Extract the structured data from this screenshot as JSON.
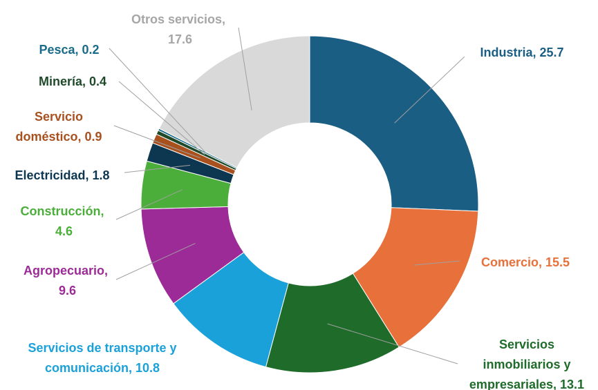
{
  "chart_data": {
    "type": "donut",
    "categories": [
      "Industria,",
      "Comercio,",
      "Servicios inmobiliarios y empresariales,",
      "Servicios de transporte y comunicación,",
      "Agropecuario,",
      "Construcción,",
      "Electricidad,",
      "Servicio doméstico,",
      "Minería,",
      "Pesca,",
      "Otros servicios,"
    ],
    "values": [
      25.7,
      15.5,
      13.1,
      10.8,
      9.6,
      4.6,
      1.8,
      0.9,
      0.4,
      0.2,
      17.6
    ],
    "colors": [
      "#1b5e84",
      "#e8703a",
      "#1e6b2a",
      "#1ba1da",
      "#9c2a97",
      "#4cae3a",
      "#0d3651",
      "#a8511e",
      "#1f4a2a",
      "#1a6b8a",
      "#d9d9d9"
    ],
    "label_colors": [
      "#1b5e84",
      "#e8703a",
      "#1e6b2a",
      "#1ba1da",
      "#9c2a97",
      "#4cae3a",
      "#0d3651",
      "#a8511e",
      "#1f4a2a",
      "#1a6b8a",
      "#a6a6a6"
    ]
  }
}
